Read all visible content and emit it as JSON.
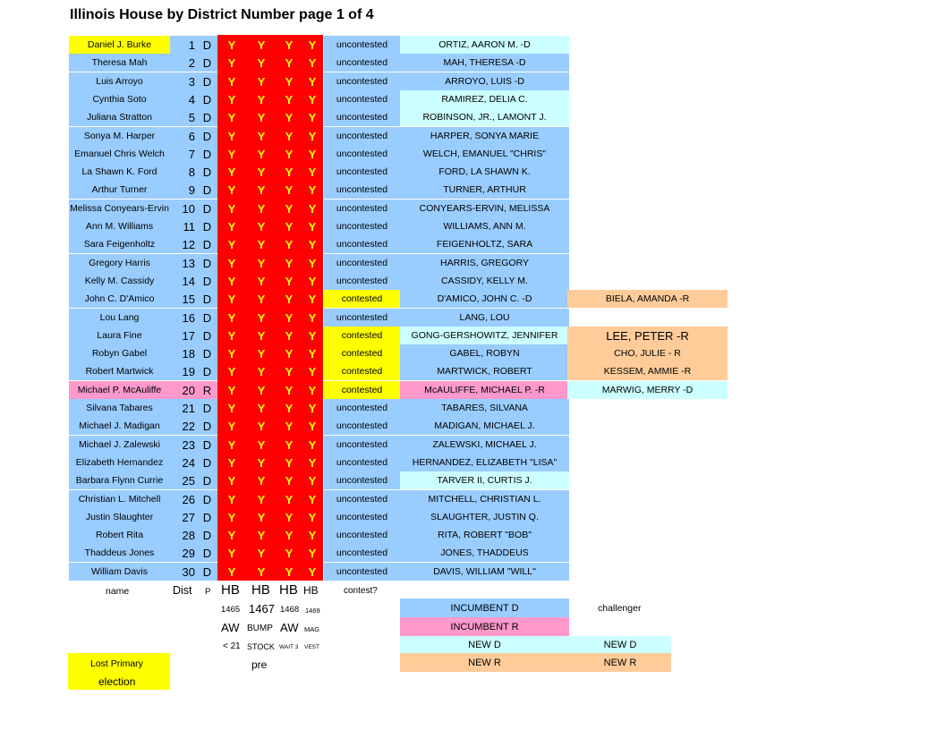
{
  "title": "Illinois House by District Number page 1 of 4",
  "y_mark": "Y",
  "rows": [
    {
      "name": "Daniel J. Burke",
      "name_bg": "#ffff00",
      "dist": "1",
      "party": "D",
      "contest": "uncontested",
      "contest_bg": "#99ccff",
      "candidate": "ORTIZ, AARON M.  -D",
      "candidate_bg": "#ccffff",
      "challenger": "",
      "challenger_bg": ""
    },
    {
      "name": "Theresa Mah",
      "name_bg": "#99ccff",
      "dist": "2",
      "party": "D",
      "contest": "uncontested",
      "contest_bg": "#99ccff",
      "candidate": "MAH, THERESA -D",
      "candidate_bg": "#99ccff",
      "challenger": "",
      "challenger_bg": ""
    },
    {
      "name": "Luis Arroyo",
      "name_bg": "#99ccff",
      "dist": "3",
      "party": "D",
      "contest": "uncontested",
      "contest_bg": "#99ccff",
      "candidate": "ARROYO, LUIS -D",
      "candidate_bg": "#99ccff",
      "challenger": "",
      "challenger_bg": ""
    },
    {
      "name": "Cynthia Soto",
      "name_bg": "#99ccff",
      "dist": "4",
      "party": "D",
      "contest": "uncontested",
      "contest_bg": "#99ccff",
      "candidate": "RAMIREZ, DELIA C.",
      "candidate_bg": "#ccffff",
      "challenger": "",
      "challenger_bg": ""
    },
    {
      "name": "Juliana Stratton",
      "name_bg": "#99ccff",
      "dist": "5",
      "party": "D",
      "contest": "uncontested",
      "contest_bg": "#99ccff",
      "candidate": "ROBINSON, JR., LAMONT J.",
      "candidate_bg": "#ccffff",
      "challenger": "",
      "challenger_bg": ""
    },
    {
      "name": "Sonya M. Harper",
      "name_bg": "#99ccff",
      "dist": "6",
      "party": "D",
      "contest": "uncontested",
      "contest_bg": "#99ccff",
      "candidate": "HARPER, SONYA MARIE",
      "candidate_bg": "#99ccff",
      "challenger": "",
      "challenger_bg": ""
    },
    {
      "name": "Emanuel Chris Welch",
      "name_bg": "#99ccff",
      "dist": "7",
      "party": "D",
      "contest": "uncontested",
      "contest_bg": "#99ccff",
      "candidate": "WELCH, EMANUEL \"CHRIS\"",
      "candidate_bg": "#99ccff",
      "challenger": "",
      "challenger_bg": ""
    },
    {
      "name": "La Shawn K. Ford",
      "name_bg": "#99ccff",
      "dist": "8",
      "party": "D",
      "contest": "uncontested",
      "contest_bg": "#99ccff",
      "candidate": "FORD, LA SHAWN K.",
      "candidate_bg": "#99ccff",
      "challenger": "",
      "challenger_bg": ""
    },
    {
      "name": "Arthur Turner",
      "name_bg": "#99ccff",
      "dist": "9",
      "party": "D",
      "contest": "uncontested",
      "contest_bg": "#99ccff",
      "candidate": "TURNER, ARTHUR",
      "candidate_bg": "#99ccff",
      "challenger": "",
      "challenger_bg": ""
    },
    {
      "name": "Melissa Conyears-Ervin",
      "name_bg": "#99ccff",
      "dist": "10",
      "party": "D",
      "contest": "uncontested",
      "contest_bg": "#99ccff",
      "candidate": "CONYEARS-ERVIN, MELISSA",
      "candidate_bg": "#99ccff",
      "challenger": "",
      "challenger_bg": ""
    },
    {
      "name": "Ann M. Williams",
      "name_bg": "#99ccff",
      "dist": "11",
      "party": "D",
      "contest": "uncontested",
      "contest_bg": "#99ccff",
      "candidate": "WILLIAMS, ANN M.",
      "candidate_bg": "#99ccff",
      "challenger": "",
      "challenger_bg": ""
    },
    {
      "name": "Sara Feigenholtz",
      "name_bg": "#99ccff",
      "dist": "12",
      "party": "D",
      "contest": "uncontested",
      "contest_bg": "#99ccff",
      "candidate": "FEIGENHOLTZ, SARA",
      "candidate_bg": "#99ccff",
      "challenger": "",
      "challenger_bg": ""
    },
    {
      "name": "Gregory Harris",
      "name_bg": "#99ccff",
      "dist": "13",
      "party": "D",
      "contest": "uncontested",
      "contest_bg": "#99ccff",
      "candidate": "HARRIS, GREGORY",
      "candidate_bg": "#99ccff",
      "challenger": "",
      "challenger_bg": ""
    },
    {
      "name": "Kelly M. Cassidy",
      "name_bg": "#99ccff",
      "dist": "14",
      "party": "D",
      "contest": "uncontested",
      "contest_bg": "#99ccff",
      "candidate": "CASSIDY, KELLY M.",
      "candidate_bg": "#99ccff",
      "challenger": "",
      "challenger_bg": ""
    },
    {
      "name": "John C. D'Amico",
      "name_bg": "#99ccff",
      "dist": "15",
      "party": "D",
      "contest": "contested",
      "contest_bg": "#ffff00",
      "candidate": "D'AMICO, JOHN C. -D",
      "candidate_bg": "#99ccff",
      "challenger": "BIELA, AMANDA -R",
      "challenger_bg": "#ffcc99"
    },
    {
      "name": "Lou Lang",
      "name_bg": "#99ccff",
      "dist": "16",
      "party": "D",
      "contest": "uncontested",
      "contest_bg": "#99ccff",
      "candidate": "LANG, LOU",
      "candidate_bg": "#99ccff",
      "challenger": "",
      "challenger_bg": ""
    },
    {
      "name": "Laura Fine",
      "name_bg": "#99ccff",
      "dist": "17",
      "party": "D",
      "contest": "contested",
      "contest_bg": "#ffff00",
      "candidate": "GONG-GERSHOWITZ, JENNIFER",
      "candidate_bg": "#ccffff",
      "challenger": "LEE, PETER -R",
      "challenger_bg": "#ffcc99"
    },
    {
      "name": "Robyn Gabel",
      "name_bg": "#99ccff",
      "dist": "18",
      "party": "D",
      "contest": "contested",
      "contest_bg": "#ffff00",
      "candidate": "GABEL, ROBYN",
      "candidate_bg": "#99ccff",
      "challenger": "CHO, JULIE - R",
      "challenger_bg": "#ffcc99"
    },
    {
      "name": "Robert Martwick",
      "name_bg": "#99ccff",
      "dist": "19",
      "party": "D",
      "contest": "contested",
      "contest_bg": "#ffff00",
      "candidate": "MARTWICK, ROBERT",
      "candidate_bg": "#99ccff",
      "challenger": "KESSEM, AMMIE -R",
      "challenger_bg": "#ffcc99"
    },
    {
      "name": "Michael P. McAuliffe",
      "name_bg": "#ff99cc",
      "dist": "20",
      "party": "R",
      "contest": "contested",
      "contest_bg": "#ffff00",
      "candidate": "McAULIFFE, MICHAEL P.  -R",
      "candidate_bg": "#ff99cc",
      "challenger": "MARWIG, MERRY -D",
      "challenger_bg": "#ccffff"
    },
    {
      "name": "Silvana Tabares",
      "name_bg": "#99ccff",
      "dist": "21",
      "party": "D",
      "contest": "uncontested",
      "contest_bg": "#99ccff",
      "candidate": "TABARES, SILVANA",
      "candidate_bg": "#99ccff",
      "challenger": "",
      "challenger_bg": ""
    },
    {
      "name": "Michael J. Madigan",
      "name_bg": "#99ccff",
      "dist": "22",
      "party": "D",
      "contest": "uncontested",
      "contest_bg": "#99ccff",
      "candidate": "MADIGAN, MICHAEL J.",
      "candidate_bg": "#99ccff",
      "challenger": "",
      "challenger_bg": ""
    },
    {
      "name": "Michael J. Zalewski",
      "name_bg": "#99ccff",
      "dist": "23",
      "party": "D",
      "contest": "uncontested",
      "contest_bg": "#99ccff",
      "candidate": "ZALEWSKI, MICHAEL J.",
      "candidate_bg": "#99ccff",
      "challenger": "",
      "challenger_bg": ""
    },
    {
      "name": "Elizabeth Hernandez",
      "name_bg": "#99ccff",
      "dist": "24",
      "party": "D",
      "contest": "uncontested",
      "contest_bg": "#99ccff",
      "candidate": "HERNANDEZ, ELIZABETH \"LISA\"",
      "candidate_bg": "#99ccff",
      "challenger": "",
      "challenger_bg": ""
    },
    {
      "name": "Barbara Flynn Currie",
      "name_bg": "#99ccff",
      "dist": "25",
      "party": "D",
      "contest": "uncontested",
      "contest_bg": "#99ccff",
      "candidate": "TARVER II, CURTIS J.",
      "candidate_bg": "#ccffff",
      "challenger": "",
      "challenger_bg": ""
    },
    {
      "name": "Christian L. Mitchell",
      "name_bg": "#99ccff",
      "dist": "26",
      "party": "D",
      "contest": "uncontested",
      "contest_bg": "#99ccff",
      "candidate": "MITCHELL, CHRISTIAN L.",
      "candidate_bg": "#99ccff",
      "challenger": "",
      "challenger_bg": ""
    },
    {
      "name": "Justin Slaughter",
      "name_bg": "#99ccff",
      "dist": "27",
      "party": "D",
      "contest": "uncontested",
      "contest_bg": "#99ccff",
      "candidate": "SLAUGHTER, JUSTIN Q.",
      "candidate_bg": "#99ccff",
      "challenger": "",
      "challenger_bg": ""
    },
    {
      "name": "Robert Rita",
      "name_bg": "#99ccff",
      "dist": "28",
      "party": "D",
      "contest": "uncontested",
      "contest_bg": "#99ccff",
      "candidate": "RITA, ROBERT \"BOB\"",
      "candidate_bg": "#99ccff",
      "challenger": "",
      "challenger_bg": ""
    },
    {
      "name": "Thaddeus Jones",
      "name_bg": "#99ccff",
      "dist": "29",
      "party": "D",
      "contest": "uncontested",
      "contest_bg": "#99ccff",
      "candidate": "JONES, THADDEUS",
      "candidate_bg": "#99ccff",
      "challenger": "",
      "challenger_bg": ""
    },
    {
      "name": "William Davis",
      "name_bg": "#99ccff",
      "dist": "30",
      "party": "D",
      "contest": "uncontested",
      "contest_bg": "#99ccff",
      "candidate": "DAVIS, WILLIAM \"WILL\"",
      "candidate_bg": "#99ccff",
      "challenger": "",
      "challenger_bg": ""
    }
  ],
  "footer": {
    "name": "name",
    "dist": "Dist",
    "p": "P",
    "hb": [
      "HB",
      "HB",
      "HB",
      "HB"
    ],
    "bill_numbers": [
      "1465",
      "1467",
      "1468",
      "1469"
    ],
    "bill_line2": [
      "AW",
      "BUMP",
      "AW",
      "MAG"
    ],
    "bill_line3": [
      "< 21",
      "STOCK",
      "WAIT 3",
      "VEST"
    ],
    "pre": "pre",
    "contest": "contest?"
  },
  "legend": {
    "incumbent_d": "INCUMBENT D",
    "incumbent_r": "INCUMBENT R",
    "new_d": "NEW  D",
    "new_r": "NEW  R",
    "challenger": "challenger",
    "challenger_new_d": "NEW D",
    "challenger_new_r": "NEW R",
    "lost_primary_1": "Lost Primary",
    "lost_primary_2": "election"
  },
  "colors": {
    "incumbent_d": "#99ccff",
    "incumbent_r": "#ff99cc",
    "new_d": "#ccffff",
    "new_r": "#ffcc99",
    "contested": "#ffff00",
    "lost_primary": "#ffff00",
    "vote_band": "#ff0000",
    "vote_mark": "#ffff00"
  }
}
